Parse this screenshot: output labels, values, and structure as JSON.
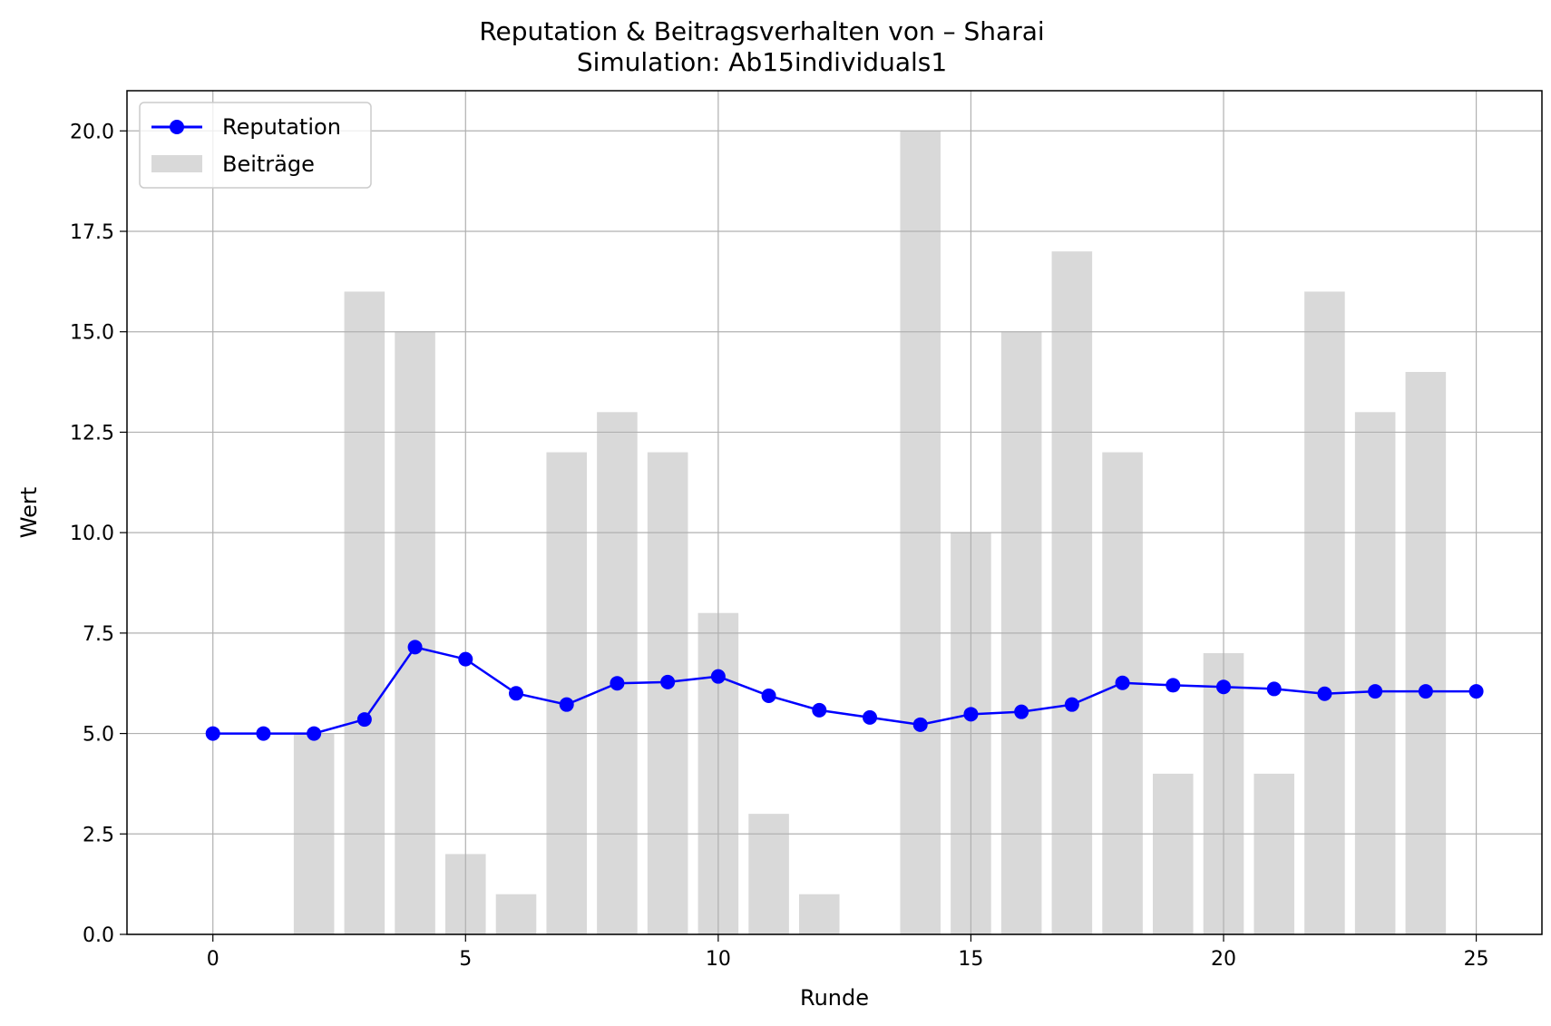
{
  "chart_data": {
    "type": "bar+line",
    "title": "Reputation & Beitragsverhalten von – Sharai",
    "subtitle": "Simulation: Ab15individuals1",
    "xlabel": "Runde",
    "ylabel": "Wert",
    "xlim": [
      -1.7,
      26.3
    ],
    "ylim": [
      0,
      21
    ],
    "xticks": [
      0,
      5,
      10,
      15,
      20,
      25
    ],
    "yticks": [
      0.0,
      2.5,
      5.0,
      7.5,
      10.0,
      12.5,
      15.0,
      17.5,
      20.0
    ],
    "xtick_labels": [
      "0",
      "5",
      "10",
      "15",
      "20",
      "25"
    ],
    "ytick_labels": [
      "0.0",
      "2.5",
      "5.0",
      "7.5",
      "10.0",
      "12.5",
      "15.0",
      "17.5",
      "20.0"
    ],
    "grid": true,
    "legend_position": "top-left",
    "series": [
      {
        "name": "Reputation",
        "kind": "line",
        "color": "#0000ff",
        "marker": "circle",
        "x": [
          0,
          1,
          2,
          3,
          4,
          5,
          6,
          7,
          8,
          9,
          10,
          11,
          12,
          13,
          14,
          15,
          16,
          17,
          18,
          19,
          20,
          21,
          22,
          23,
          24,
          25
        ],
        "values": [
          5.0,
          5.0,
          5.0,
          5.35,
          7.15,
          6.85,
          6.0,
          5.72,
          6.25,
          6.28,
          6.42,
          5.94,
          5.58,
          5.4,
          5.22,
          5.48,
          5.54,
          5.72,
          6.26,
          6.2,
          6.16,
          6.11,
          5.99,
          6.05,
          6.05,
          6.05
        ]
      },
      {
        "name": "Beiträge",
        "kind": "bar",
        "color": "#d9d9d9",
        "x": [
          0,
          1,
          2,
          3,
          4,
          5,
          6,
          7,
          8,
          9,
          10,
          11,
          12,
          13,
          14,
          15,
          16,
          17,
          18,
          19,
          20,
          21,
          22,
          23,
          24
        ],
        "values": [
          0,
          0,
          5,
          16,
          15,
          2,
          1,
          12,
          13,
          12,
          8,
          3,
          1,
          0,
          20,
          10,
          15,
          17,
          12,
          4,
          7,
          4,
          16,
          13,
          14
        ]
      }
    ]
  }
}
